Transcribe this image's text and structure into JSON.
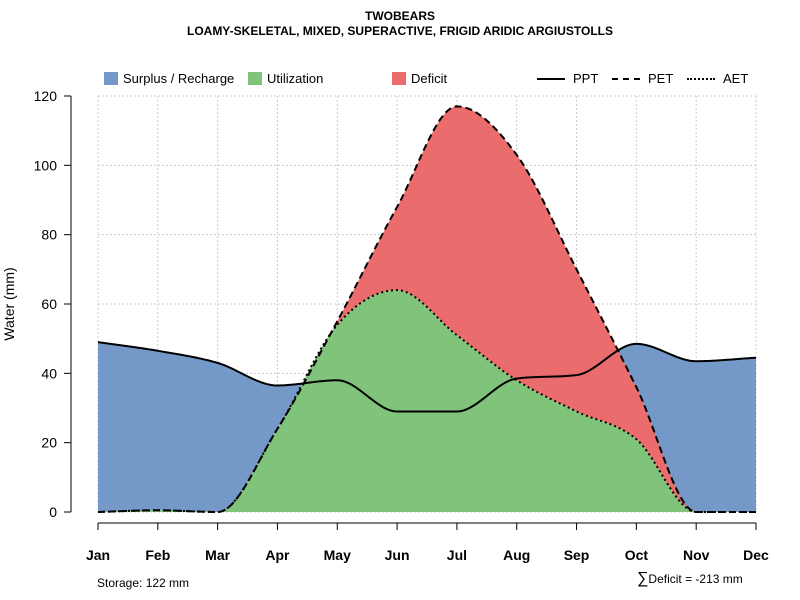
{
  "title": "TWOBEARS",
  "subtitle": "LOAMY-SKELETAL, MIXED, SUPERACTIVE, FRIGID ARIDIC ARGIUSTOLLS",
  "legend": {
    "surplus": "Surplus / Recharge",
    "utilization": "Utilization",
    "deficit": "Deficit",
    "ppt": "PPT",
    "pet": "PET",
    "aet": "AET"
  },
  "colors": {
    "surplus": "#7499c8",
    "utilization": "#7fc47a",
    "deficit": "#eb6c6c",
    "grid": "#cccccc"
  },
  "footer": {
    "storage": "Storage: 122 mm",
    "deficit_symbol": "∑",
    "deficit": "Deficit = -213 mm"
  },
  "chart_data": {
    "type": "area",
    "title": "TWOBEARS",
    "subtitle": "LOAMY-SKELETAL, MIXED, SUPERACTIVE, FRIGID ARIDIC ARGIUSTOLLS",
    "xlabel": "",
    "ylabel": "Water (mm)",
    "ylim": [
      0,
      120
    ],
    "yticks": [
      0,
      20,
      40,
      60,
      80,
      100,
      120
    ],
    "categories": [
      "Jan",
      "Feb",
      "Mar",
      "Apr",
      "May",
      "Jun",
      "Jul",
      "Aug",
      "Sep",
      "Oct",
      "Nov",
      "Dec"
    ],
    "grid": true,
    "legend_position": "top",
    "series": [
      {
        "name": "PPT",
        "style": "solid",
        "values": [
          49,
          46.5,
          43,
          36.5,
          38,
          29,
          29,
          38.5,
          39.5,
          48.5,
          43.5,
          44.5
        ]
      },
      {
        "name": "PET",
        "style": "dashed",
        "values": [
          0,
          0.5,
          0,
          24,
          55,
          88,
          117,
          103,
          70,
          36,
          0,
          0
        ]
      },
      {
        "name": "AET",
        "style": "dotted",
        "values": [
          0,
          0.5,
          0,
          24,
          54,
          64,
          51,
          38,
          29,
          21,
          0,
          0
        ]
      }
    ]
  }
}
